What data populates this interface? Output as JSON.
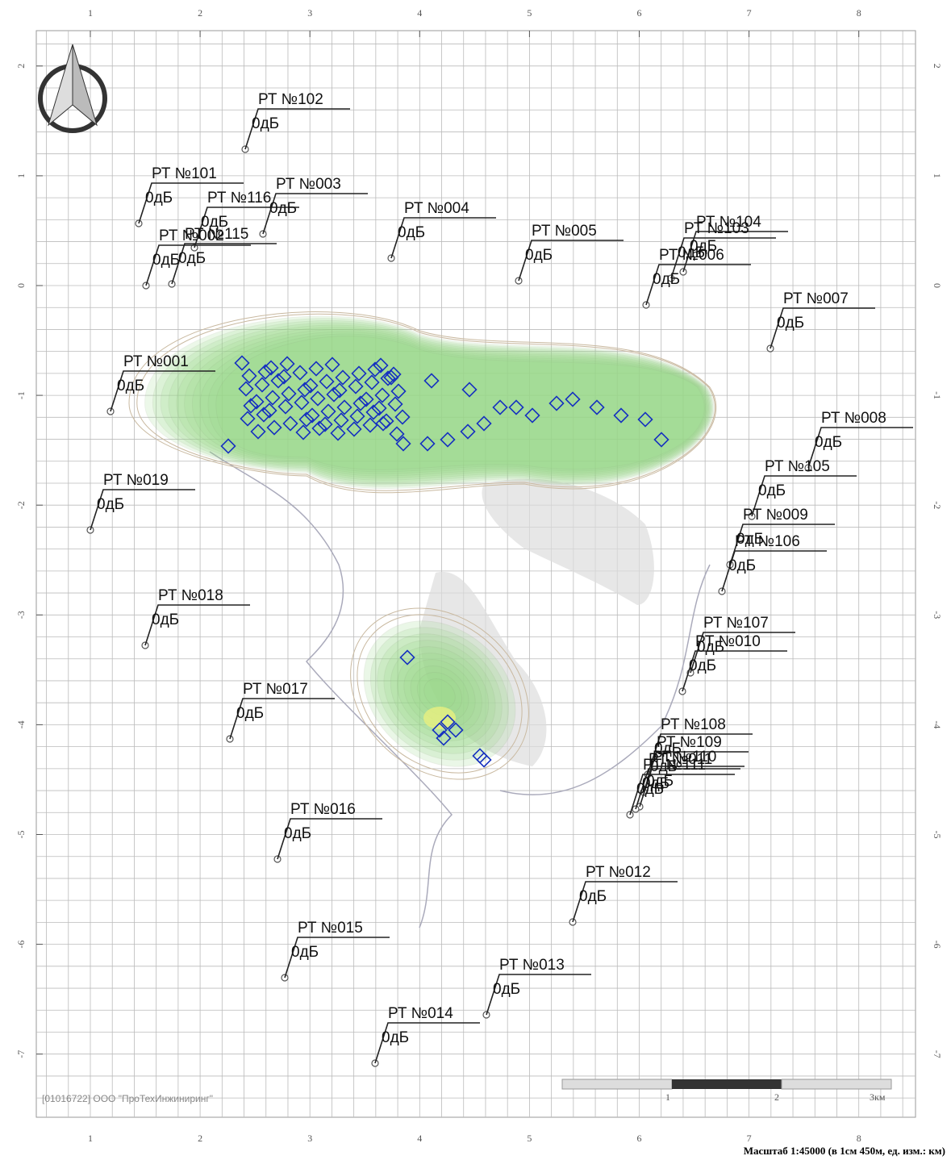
{
  "map": {
    "x_ticks": [
      1,
      2,
      3,
      4,
      5,
      6,
      7,
      8
    ],
    "y_ticks": [
      2,
      1,
      0,
      -1,
      -2,
      -3,
      -4,
      -5,
      -6,
      -7
    ],
    "points": [
      {
        "name": "РТ №101",
        "level": "0дБ"
      },
      {
        "name": "РТ №102",
        "level": "0дБ"
      },
      {
        "name": "РТ №116",
        "level": "0дБ"
      },
      {
        "name": "РТ №003",
        "level": "0дБ"
      },
      {
        "name": "РТ №002",
        "level": "0дБ"
      },
      {
        "name": "РТ №115",
        "level": "0дБ"
      },
      {
        "name": "РТ №004",
        "level": "0дБ"
      },
      {
        "name": "РТ №005",
        "level": "0дБ"
      },
      {
        "name": "РТ №104",
        "level": "0дБ"
      },
      {
        "name": "РТ №103",
        "level": "0дБ"
      },
      {
        "name": "РТ №006",
        "level": "0дБ"
      },
      {
        "name": "РТ №007",
        "level": "0дБ"
      },
      {
        "name": "РТ №001",
        "level": "0дБ"
      },
      {
        "name": "РТ №008",
        "level": "0дБ"
      },
      {
        "name": "РТ №105",
        "level": "0дБ"
      },
      {
        "name": "РТ №009",
        "level": "0дБ"
      },
      {
        "name": "РТ №106",
        "level": "0дБ"
      },
      {
        "name": "РТ №019",
        "level": "0дБ"
      },
      {
        "name": "РТ №018",
        "level": "0дБ"
      },
      {
        "name": "РТ №107",
        "level": "0дБ"
      },
      {
        "name": "РТ №010",
        "level": "0дБ"
      },
      {
        "name": "РТ №017",
        "level": "0дБ"
      },
      {
        "name": "РТ №108",
        "level": "0дБ"
      },
      {
        "name": "РТ №109",
        "level": "0дБ"
      },
      {
        "name": "РТ №110",
        "level": "0дБ"
      },
      {
        "name": "РТ №011",
        "level": "0дБ"
      },
      {
        "name": "РТ №111",
        "level": "0дБ"
      },
      {
        "name": "РТ №016",
        "level": "0дБ"
      },
      {
        "name": "РТ №012",
        "level": "0дБ"
      },
      {
        "name": "РТ №015",
        "level": "0дБ"
      },
      {
        "name": "РТ №013",
        "level": "0дБ"
      },
      {
        "name": "РТ №014",
        "level": "0дБ"
      }
    ],
    "copyright": "[01016722] ООО \"ПроТехИнжиниринг\"",
    "scale": "Масштаб 1:45000 (в 1см 450м, ед. изм.: км)",
    "scale_bar_labels": [
      "1",
      "2",
      "3км"
    ]
  }
}
